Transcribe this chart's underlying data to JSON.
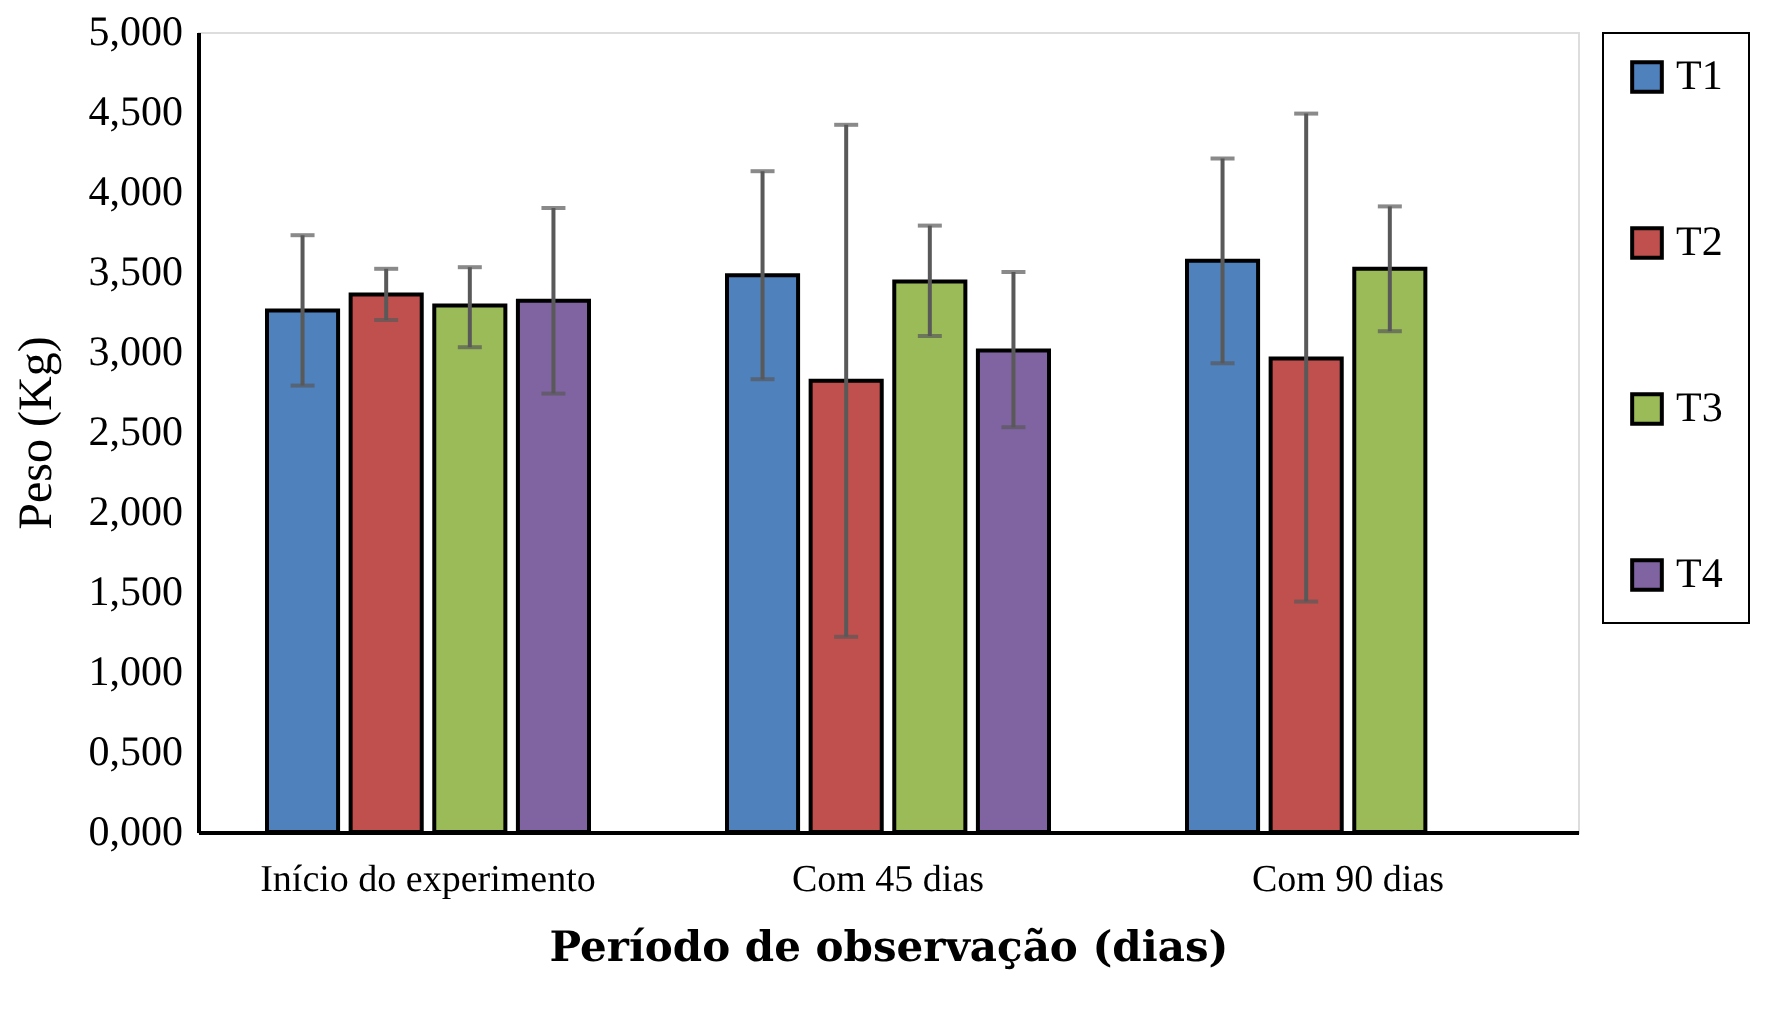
{
  "chart_data": {
    "type": "bar",
    "xlabel": "Período de observação (dias)",
    "ylabel": "Peso (Kg)",
    "categories": [
      "Início do experimento",
      "Com 45 dias",
      "Com 90 dias"
    ],
    "series": [
      {
        "name": "T1",
        "color": "#4f81bd",
        "values": [
          3.26,
          3.48,
          3.57
        ],
        "errors": [
          [
            2.79,
            3.73
          ],
          [
            2.83,
            4.13
          ],
          [
            2.93,
            4.21
          ]
        ]
      },
      {
        "name": "T2",
        "color": "#c0504d",
        "values": [
          3.36,
          2.82,
          2.96
        ],
        "errors": [
          [
            3.2,
            3.52
          ],
          [
            1.22,
            4.42
          ],
          [
            1.44,
            4.49
          ]
        ]
      },
      {
        "name": "T3",
        "color": "#9bbb59",
        "values": [
          3.29,
          3.44,
          3.52
        ],
        "errors": [
          [
            3.03,
            3.53
          ],
          [
            3.1,
            3.79
          ],
          [
            3.13,
            3.91
          ]
        ]
      },
      {
        "name": "T4",
        "color": "#8064a2",
        "values": [
          3.32,
          3.01,
          null
        ],
        "errors": [
          [
            2.74,
            3.9
          ],
          [
            2.53,
            3.5
          ],
          null
        ]
      }
    ],
    "ylim": [
      0,
      5
    ],
    "yticks": [
      {
        "value": 0,
        "label": "0,000"
      },
      {
        "value": 0.5,
        "label": "0,500"
      },
      {
        "value": 1,
        "label": "1,000"
      },
      {
        "value": 1.5,
        "label": "1,500"
      },
      {
        "value": 2,
        "label": "2,000"
      },
      {
        "value": 2.5,
        "label": "2,500"
      },
      {
        "value": 3,
        "label": "3,000"
      },
      {
        "value": 3.5,
        "label": "3,500"
      },
      {
        "value": 4,
        "label": "4,000"
      },
      {
        "value": 4.5,
        "label": "4,500"
      },
      {
        "value": 5,
        "label": "5,000"
      }
    ],
    "grid": false,
    "legend": "right"
  }
}
